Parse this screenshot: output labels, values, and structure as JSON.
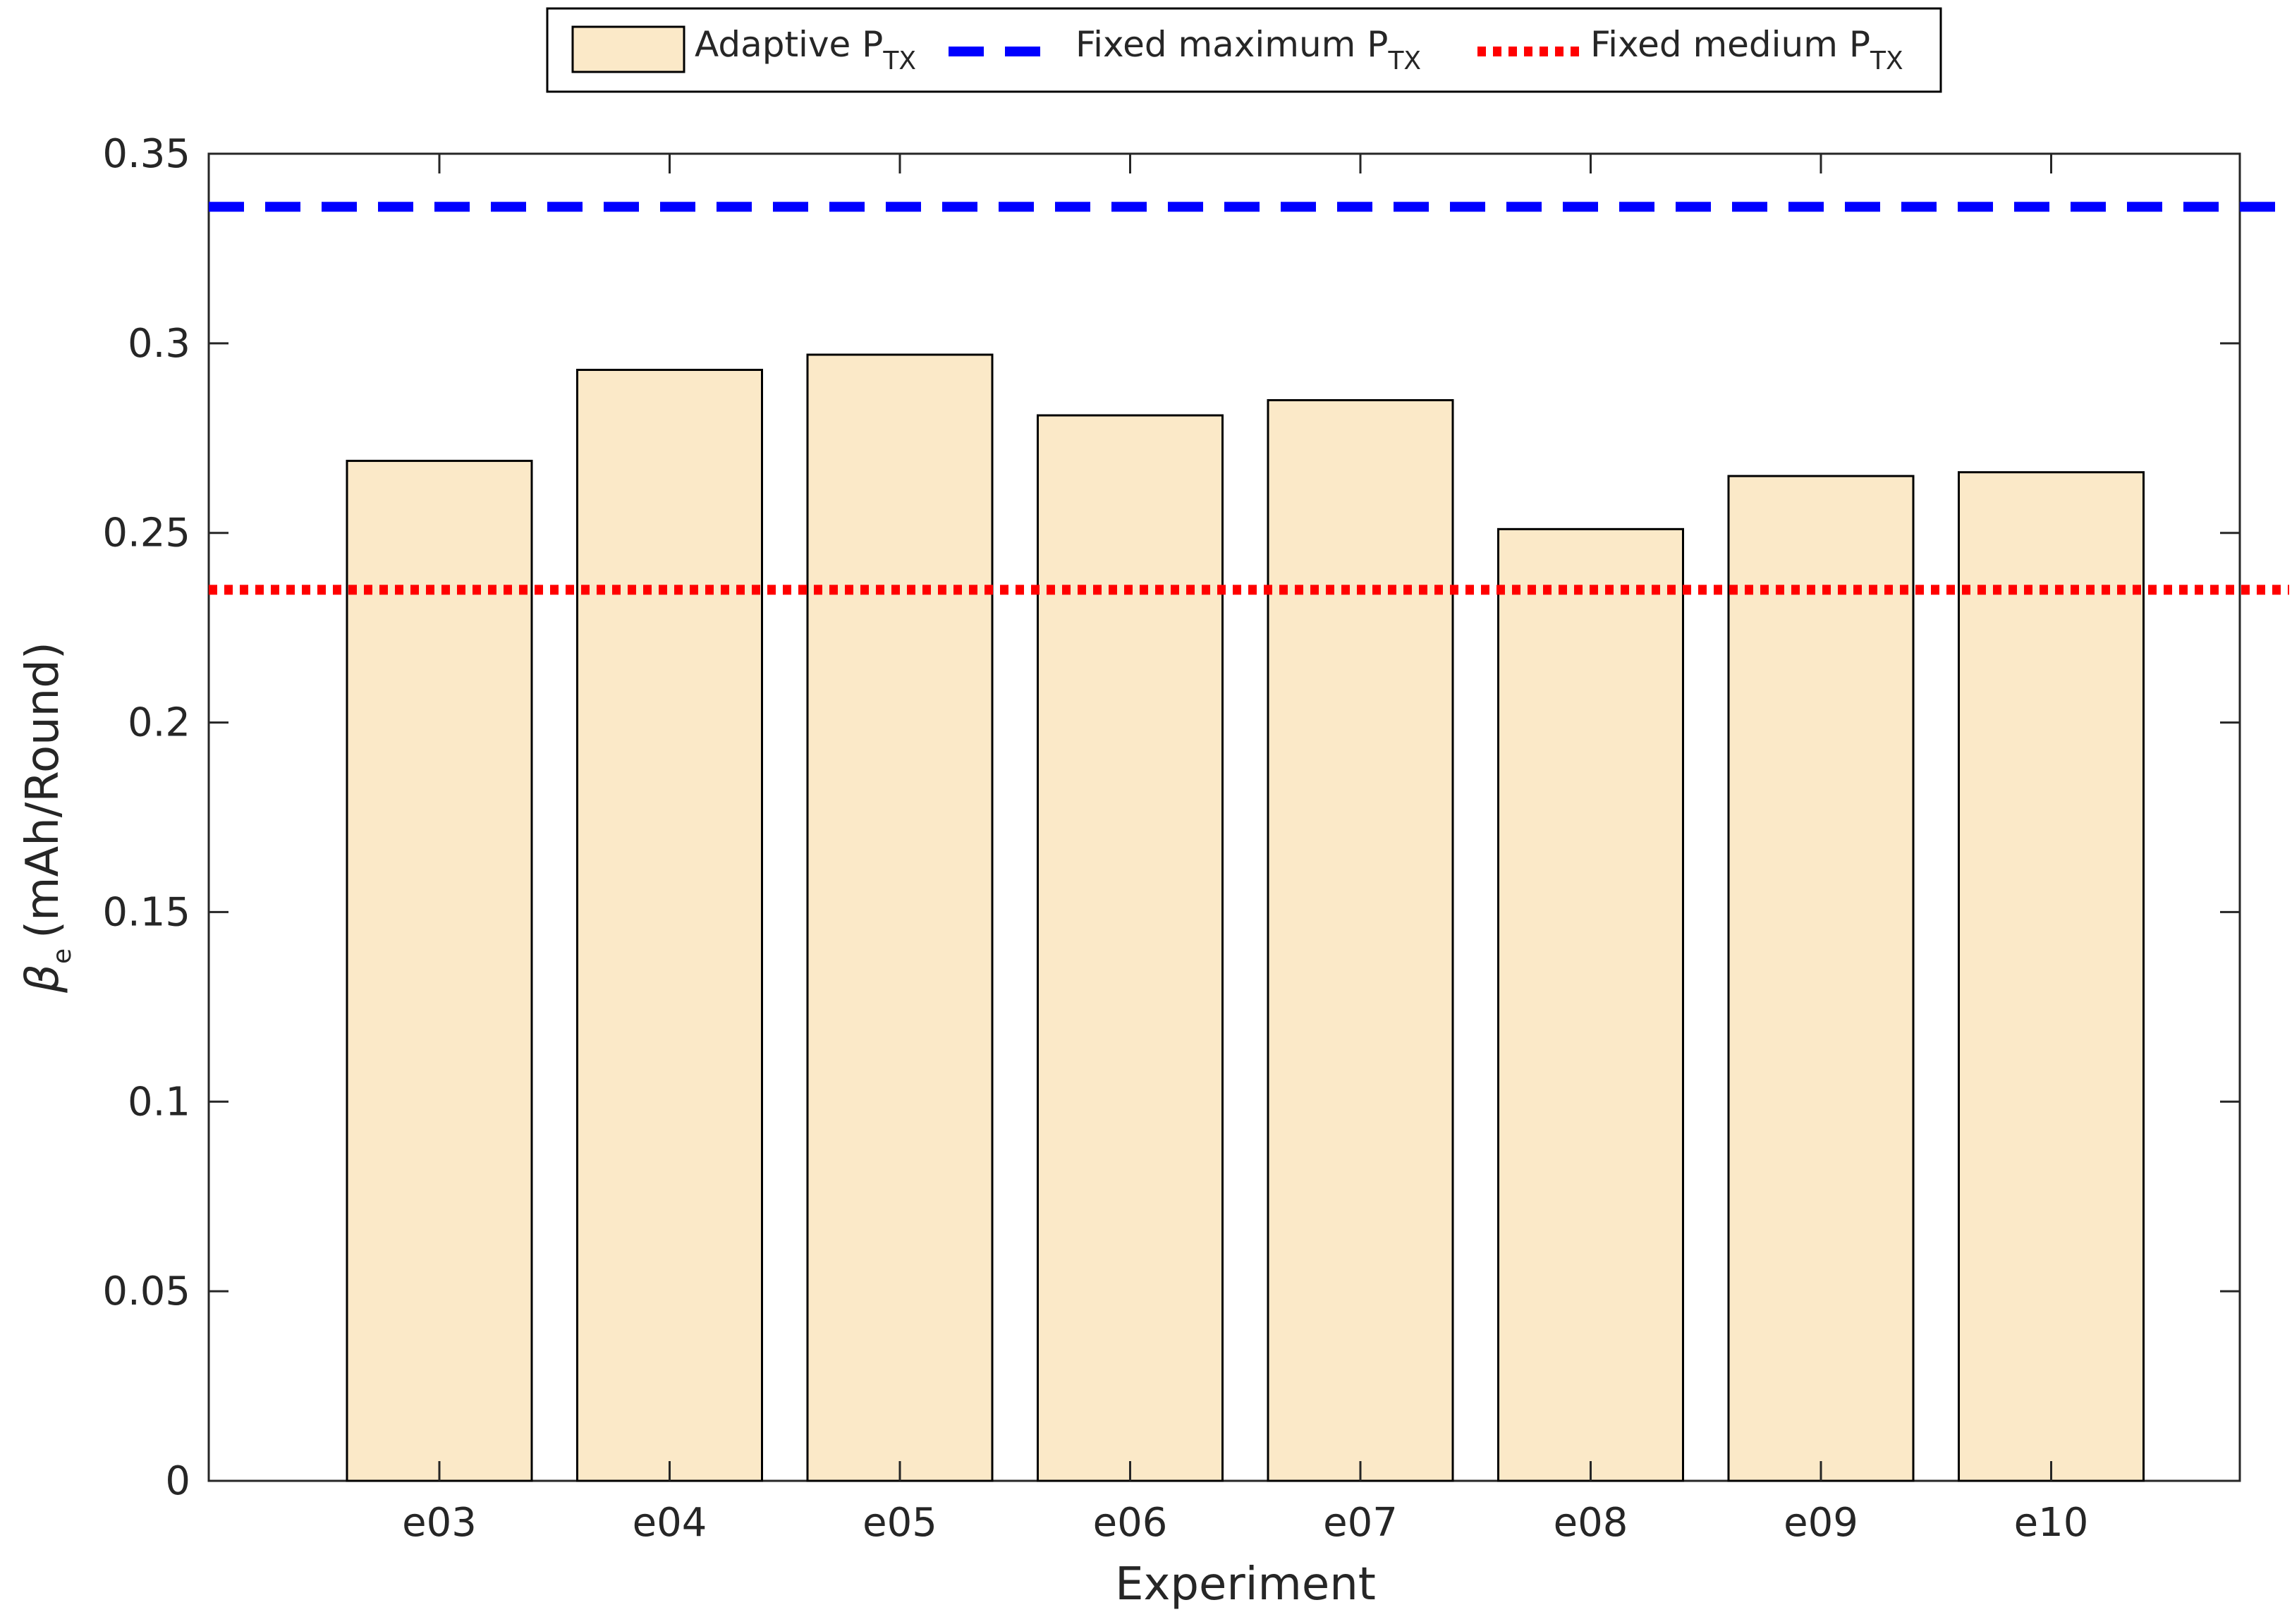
{
  "chart_data": {
    "type": "bar",
    "categories": [
      "e03",
      "e04",
      "e05",
      "e06",
      "e07",
      "e08",
      "e09",
      "e10"
    ],
    "series": [
      {
        "name": "Adaptive P_TX",
        "values": [
          0.269,
          0.293,
          0.297,
          0.281,
          0.285,
          0.251,
          0.265,
          0.266
        ],
        "color": "#fbe9c8"
      }
    ],
    "reference_lines": [
      {
        "name": "Fixed maximum P_TX",
        "value": 0.336,
        "style": "dashed",
        "color": "#0000ff"
      },
      {
        "name": "Fixed medium P_TX",
        "value": 0.235,
        "style": "dotted",
        "color": "#ff0000"
      }
    ],
    "xlabel": "Experiment",
    "ylabel": "(mAh/Round)",
    "ylabel_symbol": "β",
    "ylabel_symbol_sub": "e",
    "ylim": [
      0,
      0.35
    ],
    "yticks": [
      "0",
      "0.05",
      "0.1",
      "0.15",
      "0.2",
      "0.25",
      "0.3",
      "0.35"
    ],
    "grid": false,
    "legend": {
      "position": "top-center",
      "entries": [
        {
          "main": "Adaptive P",
          "sub": "TX"
        },
        {
          "main": "Fixed maximum P",
          "sub": "TX"
        },
        {
          "main": "Fixed medium P",
          "sub": "TX"
        }
      ]
    }
  }
}
